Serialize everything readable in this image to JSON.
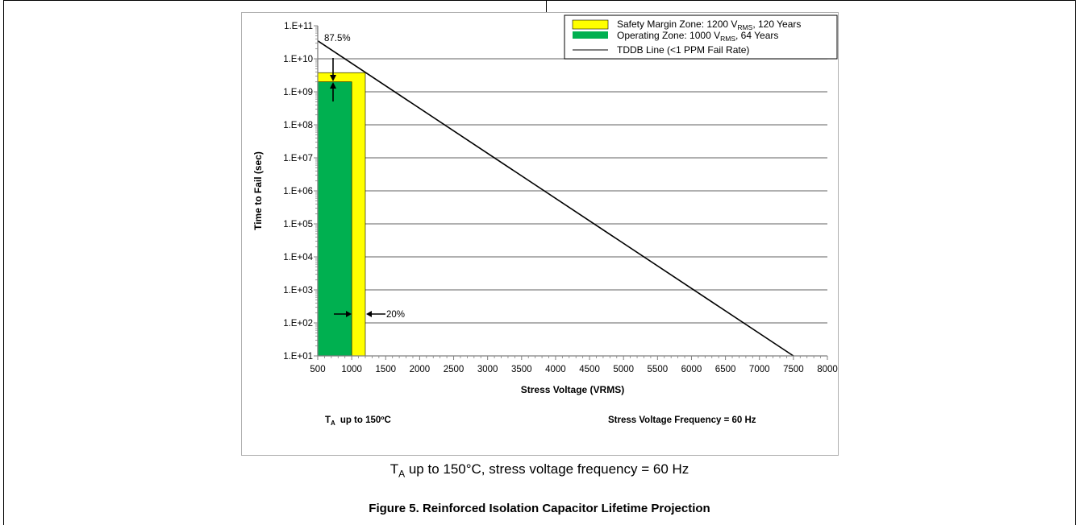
{
  "chart_data": {
    "type": "bar",
    "title": "",
    "xlabel": "Stress Voltage (VRMS)",
    "ylabel": "Time to Fail (sec)",
    "xlim": [
      500,
      8000
    ],
    "ylim": [
      "1.E+01",
      "1.E+11"
    ],
    "yscale": "log",
    "x_ticks": [
      "500",
      "1000",
      "1500",
      "2000",
      "2500",
      "3000",
      "3500",
      "4000",
      "4500",
      "5000",
      "5500",
      "6000",
      "6500",
      "7000",
      "7500",
      "8000"
    ],
    "y_ticks": [
      "1.E+11",
      "1.E+10",
      "1.E+09",
      "1.E+08",
      "1.E+07",
      "1.E+06",
      "1.E+05",
      "1.E+04",
      "1.E+03",
      "1.E+02",
      "1.E+01"
    ],
    "grid": "horizontal",
    "legend_position": "top-right",
    "series": [
      {
        "name": "Safety Margin Zone: 1200 V_RMS, 120 Years",
        "legend_main": "Safety Margin Zone: 1200 V",
        "legend_sub": "RMS",
        "legend_tail": ", 120 Years",
        "type": "bar",
        "x_range": [
          500,
          1200
        ],
        "value": 3800000000,
        "color": "#ffff00"
      },
      {
        "name": "Operating Zone: 1000 V_RMS, 64 Years",
        "legend_main": "Operating Zone: 1000 V",
        "legend_sub": "RMS",
        "legend_tail": ", 64 Years",
        "type": "bar",
        "x_range": [
          500,
          1000
        ],
        "value": 2000000000,
        "color": "#00b050"
      },
      {
        "name": "TDDB Line (<1 PPM Fail Rate)",
        "legend_main": "TDDB Line (<1 PPM Fail Rate)",
        "legend_sub": "",
        "legend_tail": "",
        "type": "line",
        "x": [
          500,
          7500
        ],
        "y": [
          35000000000,
          10
        ],
        "color": "#000000"
      }
    ],
    "annotations": {
      "vertical_margin": "87.5%",
      "horizontal_margin": "20%",
      "temp_prefix": "T",
      "temp_sub": "A",
      "temp_text": "up to 150ºC",
      "frequency_text": "Stress Voltage Frequency = 60 Hz"
    }
  },
  "captions": {
    "line1_prefix": "T",
    "line1_sub": "A",
    "line1_text": " up to 150°C, stress voltage frequency = 60 Hz",
    "figure_title": "Figure 5. Reinforced Isolation Capacitor Lifetime Projection"
  }
}
